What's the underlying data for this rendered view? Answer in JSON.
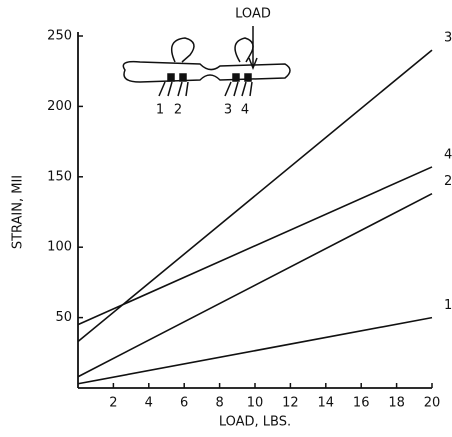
{
  "chart_data": {
    "type": "line",
    "xlabel": "LOAD, LBS.",
    "ylabel": "STRAIN, MII",
    "x": [
      0,
      20
    ],
    "series": [
      {
        "name": "1",
        "color": "#111111",
        "values": [
          3,
          50
        ]
      },
      {
        "name": "2",
        "color": "#111111",
        "values": [
          8,
          138
        ]
      },
      {
        "name": "3",
        "color": "#111111",
        "values": [
          33,
          240
        ]
      },
      {
        "name": "4",
        "color": "#111111",
        "values": [
          45,
          157
        ]
      }
    ],
    "xlim": [
      0,
      20
    ],
    "xticks": [
      2,
      4,
      6,
      8,
      10,
      12,
      14,
      16,
      18,
      20
    ],
    "ylim": [
      0,
      250
    ],
    "yticks": [
      50,
      100,
      150,
      200,
      250
    ],
    "inset": {
      "label": "LOAD",
      "gauges": [
        "1",
        "2",
        "3",
        "4"
      ]
    }
  }
}
